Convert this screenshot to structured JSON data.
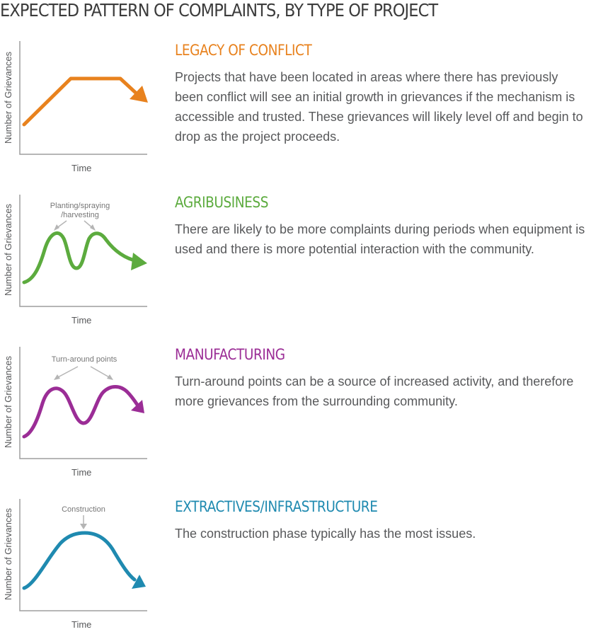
{
  "title": "EXPECTED PATTERN OF COMPLAINTS, BY TYPE OF PROJECT",
  "axis": {
    "y_label": "Number of Grievances",
    "x_label": "Time"
  },
  "sections": [
    {
      "heading": "LEGACY OF CONFLICT",
      "color": "#e8821e",
      "annotation": "",
      "body": "Projects that have been located in areas where there has previously been conflict will see an initial growth in grievances if the mechanism is accessible and trusted. These grievances will likely level off and begin to drop as the project proceeds."
    },
    {
      "heading": "AGRIBUSINESS",
      "color": "#5cab3e",
      "annotation": "Planting/spraying /harvesting",
      "body": "There are likely to be more complaints during periods when equipment is used and there is more potential interaction with the community."
    },
    {
      "heading": "MANUFACTURING",
      "color": "#9b2d96",
      "annotation": "Turn-around points",
      "body": "Turn-around points can be a source of increased activity, and therefore more grievances from the surrounding community."
    },
    {
      "heading": "EXTRACTIVES/INFRASTRUCTURE",
      "color": "#1f8ab0",
      "annotation": "Construction",
      "body": "The construction phase typically has the most issues."
    }
  ]
}
